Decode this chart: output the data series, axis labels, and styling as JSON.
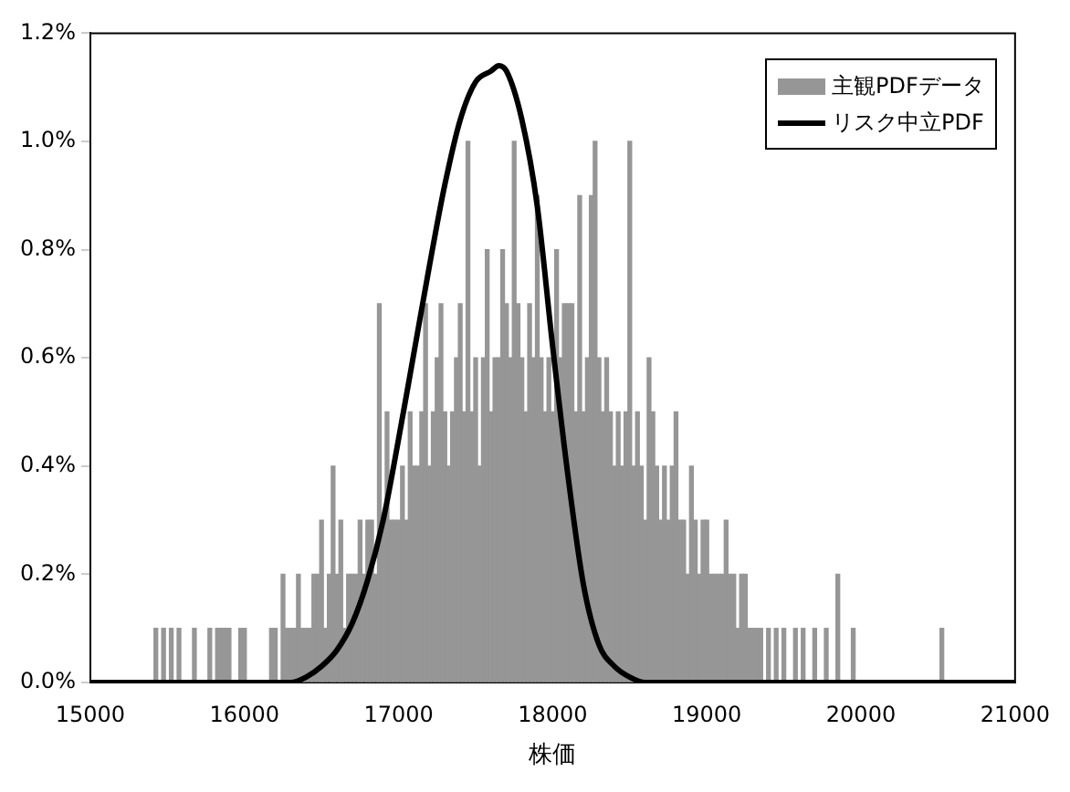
{
  "chart_data": {
    "type": "bar",
    "xlabel": "株価",
    "legend": "top right",
    "grid": false,
    "xlim": [
      15000,
      21000
    ],
    "xticks": [
      15000,
      16000,
      17000,
      18000,
      19000,
      20000,
      21000
    ],
    "ylim": [
      0,
      1.2
    ],
    "yticks": [
      {
        "value": 0,
        "label": "0.0%"
      },
      {
        "value": 0.2,
        "label": "0.2%"
      },
      {
        "value": 0.4,
        "label": "0.4%"
      },
      {
        "value": 0.6,
        "label": "0.6%"
      },
      {
        "value": 0.8,
        "label": "0.8%"
      },
      {
        "value": 1.0,
        "label": "1.0%"
      },
      {
        "value": 1.2,
        "label": "1.2%"
      }
    ],
    "series": [
      {
        "name": "主観PDFデータ",
        "color": "#969696",
        "x": [
          15425,
          15475,
          15525,
          15575,
          15675,
          15775,
          15825,
          15850,
          15875,
          15900,
          15975,
          16000,
          16175,
          16200,
          16250,
          16275,
          16300,
          16325,
          16350,
          16375,
          16400,
          16425,
          16450,
          16475,
          16500,
          16525,
          16550,
          16575,
          16600,
          16625,
          16650,
          16675,
          16700,
          16725,
          16750,
          16775,
          16800,
          16825,
          16850,
          16875,
          16900,
          16925,
          16950,
          16975,
          17000,
          17025,
          17050,
          17075,
          17100,
          17125,
          17150,
          17175,
          17200,
          17225,
          17250,
          17275,
          17300,
          17325,
          17350,
          17375,
          17400,
          17425,
          17450,
          17475,
          17500,
          17525,
          17550,
          17575,
          17600,
          17625,
          17650,
          17675,
          17700,
          17725,
          17750,
          17775,
          17800,
          17825,
          17850,
          17875,
          17900,
          17925,
          17950,
          17975,
          18000,
          18025,
          18050,
          18075,
          18100,
          18125,
          18150,
          18175,
          18200,
          18225,
          18250,
          18275,
          18300,
          18325,
          18350,
          18375,
          18400,
          18425,
          18450,
          18475,
          18500,
          18525,
          18550,
          18575,
          18600,
          18625,
          18650,
          18675,
          18700,
          18725,
          18750,
          18775,
          18800,
          18825,
          18850,
          18875,
          18900,
          18925,
          18950,
          18975,
          19000,
          19025,
          19050,
          19075,
          19100,
          19125,
          19150,
          19175,
          19200,
          19225,
          19250,
          19275,
          19300,
          19325,
          19350,
          19400,
          19450,
          19500,
          19575,
          19625,
          19700,
          19775,
          19850,
          19950,
          20525
        ],
        "values": [
          0.1,
          0.1,
          0.1,
          0.1,
          0.1,
          0.1,
          0.1,
          0.1,
          0.1,
          0.1,
          0.1,
          0.1,
          0.1,
          0.1,
          0.2,
          0.1,
          0.1,
          0.1,
          0.2,
          0.1,
          0.1,
          0.1,
          0.2,
          0.2,
          0.3,
          0.1,
          0.2,
          0.4,
          0.2,
          0.3,
          0.1,
          0.2,
          0.2,
          0.2,
          0.3,
          0.2,
          0.3,
          0.3,
          0.2,
          0.7,
          0.3,
          0.5,
          0.3,
          0.3,
          0.3,
          0.4,
          0.3,
          0.5,
          0.4,
          0.4,
          0.5,
          0.7,
          0.4,
          0.5,
          0.6,
          0.7,
          0.5,
          0.4,
          0.5,
          0.6,
          0.7,
          0.5,
          1.0,
          0.5,
          0.6,
          0.4,
          0.6,
          0.8,
          0.5,
          0.6,
          0.6,
          0.8,
          0.7,
          0.6,
          1.0,
          0.7,
          0.6,
          0.5,
          0.7,
          0.6,
          0.9,
          0.6,
          0.5,
          0.6,
          0.5,
          0.8,
          0.6,
          0.7,
          0.7,
          0.7,
          0.5,
          0.9,
          0.5,
          0.6,
          0.9,
          1.0,
          0.6,
          0.5,
          0.6,
          0.5,
          0.4,
          0.5,
          0.4,
          0.5,
          1.0,
          0.4,
          0.5,
          0.4,
          0.3,
          0.6,
          0.5,
          0.4,
          0.3,
          0.4,
          0.3,
          0.4,
          0.5,
          0.3,
          0.3,
          0.2,
          0.4,
          0.3,
          0.2,
          0.3,
          0.3,
          0.2,
          0.2,
          0.2,
          0.2,
          0.3,
          0.2,
          0.2,
          0.1,
          0.2,
          0.2,
          0.1,
          0.1,
          0.1,
          0.1,
          0.1,
          0.1,
          0.1,
          0.1,
          0.1,
          0.1,
          0.1,
          0.2,
          0.1,
          0.1
        ]
      },
      {
        "name": "リスク中立PDF",
        "type": "line",
        "color": "#000000",
        "x": [
          15000,
          16300,
          16400,
          16500,
          16600,
          16700,
          16800,
          16900,
          17000,
          17100,
          17200,
          17300,
          17400,
          17500,
          17600,
          17650,
          17700,
          17800,
          17900,
          18000,
          18100,
          18200,
          18300,
          18400,
          18500,
          18600,
          21000
        ],
        "values": [
          0,
          0,
          0.01,
          0.03,
          0.06,
          0.11,
          0.19,
          0.3,
          0.45,
          0.61,
          0.77,
          0.92,
          1.04,
          1.11,
          1.13,
          1.14,
          1.13,
          1.04,
          0.88,
          0.62,
          0.38,
          0.18,
          0.07,
          0.03,
          0.01,
          0,
          0
        ]
      }
    ]
  }
}
